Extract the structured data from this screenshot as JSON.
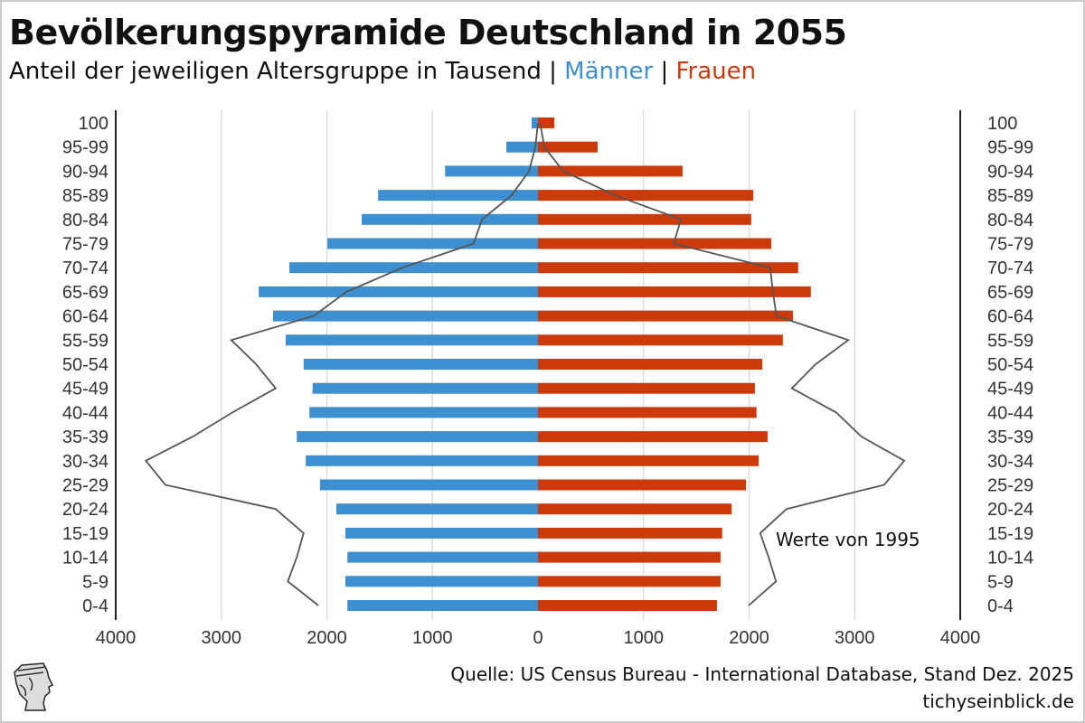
{
  "header": {
    "title": "Bevölkerungspyramide Deutschland in 2055",
    "subtitle_prefix": "Anteil der jeweiligen Altersgruppe in Tausend | ",
    "men_label": "Männer",
    "separator": " | ",
    "women_label": "Frauen"
  },
  "footer": {
    "source": "Quelle: US Census Bureau - International Database, Stand Dez. 2025",
    "site": "tichyseinblick.de",
    "logo_name": "tichyseinblick-logo"
  },
  "chart_data": {
    "type": "bar",
    "orientation": "horizontal-pyramid",
    "title": "Bevölkerungspyramide Deutschland in 2055",
    "unit": "Tausend",
    "categories": [
      "100",
      "95-99",
      "90-94",
      "85-89",
      "80-84",
      "75-79",
      "70-74",
      "65-69",
      "60-64",
      "55-59",
      "50-54",
      "45-49",
      "40-44",
      "35-39",
      "30-34",
      "25-29",
      "20-24",
      "15-19",
      "10-14",
      "5-9",
      "0-4"
    ],
    "xlim": [
      -4000,
      4000
    ],
    "xticks": [
      "4000",
      "3000",
      "2000",
      "1000",
      "0",
      "1000",
      "2000",
      "3000",
      "4000"
    ],
    "grid": true,
    "colors": {
      "men": "#3d8fcf",
      "women": "#cc3a0b",
      "line1995": "#555555"
    },
    "series": [
      {
        "name": "Männer",
        "values": [
          60,
          300,
          880,
          1515,
          1670,
          1995,
          2355,
          2645,
          2510,
          2390,
          2220,
          2135,
          2165,
          2285,
          2200,
          2065,
          1910,
          1825,
          1805,
          1825,
          1805
        ]
      },
      {
        "name": "Frauen",
        "values": [
          155,
          565,
          1370,
          2040,
          2020,
          2210,
          2465,
          2585,
          2415,
          2320,
          2125,
          2055,
          2070,
          2175,
          2090,
          1970,
          1835,
          1745,
          1730,
          1730,
          1695
        ]
      },
      {
        "name": "Männer 1995",
        "type": "line",
        "values": [
          0,
          25,
          85,
          250,
          530,
          610,
          1285,
          1815,
          2125,
          2905,
          2670,
          2485,
          2895,
          3270,
          3715,
          3530,
          2485,
          2220,
          2285,
          2370,
          2080
        ]
      },
      {
        "name": "Frauen 1995",
        "type": "line",
        "values": [
          20,
          60,
          240,
          730,
          1355,
          1285,
          2200,
          2225,
          2260,
          2940,
          2630,
          2405,
          2825,
          3065,
          3470,
          3280,
          2355,
          2105,
          2185,
          2255,
          1995
        ]
      }
    ],
    "annotation": "Werte von 1995"
  }
}
